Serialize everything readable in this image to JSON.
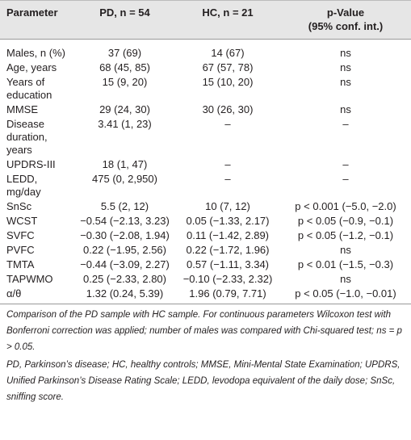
{
  "table": {
    "header": [
      "Parameter",
      "PD, n = 54",
      "HC, n = 21",
      [
        "p-Value",
        "(95% conf. int.)"
      ]
    ],
    "rows": [
      [
        "Males, n (%)",
        "37 (69)",
        "14 (67)",
        "ns"
      ],
      [
        "Age, years",
        "68 (45, 85)",
        "67 (57, 78)",
        "ns"
      ],
      [
        "Years of education",
        "15 (9, 20)",
        "15 (10, 20)",
        "ns"
      ],
      [
        "MMSE",
        "29 (24, 30)",
        "30 (26, 30)",
        "ns"
      ],
      [
        "Disease duration, years",
        "3.41 (1, 23)",
        "–",
        "–"
      ],
      [
        "UPDRS-III",
        "18 (1, 47)",
        "–",
        "–"
      ],
      [
        "LEDD, mg/day",
        "475 (0, 2,950)",
        "–",
        "–"
      ],
      [
        "SnSc",
        "5.5 (2, 12)",
        "10 (7, 12)",
        "p < 0.001 (−5.0, −2.0)"
      ],
      [
        "WCST",
        "−0.54 (−2.13, 3.23)",
        "0.05 (−1.33, 2.17)",
        "p < 0.05 (−0.9, −0.1)"
      ],
      [
        "SVFC",
        "−0.30 (−2.08, 1.94)",
        "0.11 (−1.42, 2.89)",
        "p < 0.05 (−1.2, −0.1)"
      ],
      [
        "PVFC",
        "0.22 (−1.95, 2.56)",
        "0.22 (−1.72, 1.96)",
        "ns"
      ],
      [
        "TMTA",
        "−0.44 (−3.09, 2.27)",
        "0.57 (−1.11, 3.34)",
        "p < 0.01 (−1.5, −0.3)"
      ],
      [
        "TAPWMO",
        "0.25 (−2.33, 2.80)",
        "−0.10 (−2.33, 2.32)",
        "ns"
      ],
      [
        "α/θ",
        "1.32 (0.24, 5.39)",
        "1.96 (0.79, 7.71)",
        "p < 0.05 (−1.0, −0.01)"
      ]
    ]
  },
  "footnotes": [
    "Comparison of the PD sample with HC sample. For continuous parameters Wilcoxon test with Bonferroni correction was applied; number of males was compared with Chi-squared test; ns = p > 0.05.",
    "PD, Parkinson’s disease; HC, healthy controls; MMSE, Mini-Mental State Examination; UPDRS, Unified Parkinson’s Disease Rating Scale; LEDD, levodopa equivalent of the daily dose; SnSc, sniffing score."
  ]
}
